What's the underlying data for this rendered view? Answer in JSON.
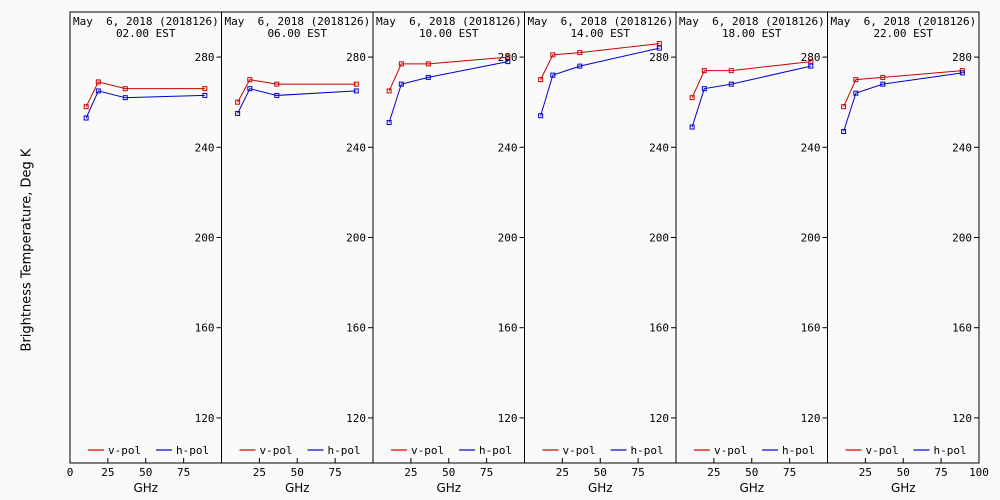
{
  "figure": {
    "ylabel": "Brightness Temperature, Deg K",
    "xlabel": "GHz",
    "colors": {
      "v_pol": "#cc0000",
      "h_pol": "#0000cc",
      "axes": "#000000",
      "background": "#fafafa"
    }
  },
  "chart_data": [
    {
      "type": "line",
      "title_line1": "May  6, 2018 (2018126)",
      "title_line2": "02.00 EST",
      "xlabel": "GHz",
      "ylabel": "Brightness Temperature, Deg K",
      "xlim": [
        0,
        100
      ],
      "ylim": [
        100,
        300
      ],
      "xticks": [
        0,
        25,
        50,
        75,
        100
      ],
      "xtick_labels": [
        "0",
        "25",
        "50",
        "75",
        "100"
      ],
      "yticks": [
        120,
        160,
        200,
        240,
        280
      ],
      "ytick_labels": [
        "120",
        "160",
        "200",
        "240",
        "280"
      ],
      "legend": [
        "v-pol",
        "h-pol"
      ],
      "legend_position": "bottom",
      "x": [
        10.65,
        18.7,
        36.5,
        89.0
      ],
      "series": [
        {
          "name": "v-pol",
          "color": "#cc0000",
          "values": [
            258,
            269,
            266,
            266
          ]
        },
        {
          "name": "h-pol",
          "color": "#0000cc",
          "values": [
            253,
            265,
            262,
            263
          ]
        }
      ]
    },
    {
      "type": "line",
      "title_line1": "May  6, 2018 (2018126)",
      "title_line2": "06.00 EST",
      "xlabel": "GHz",
      "ylabel": "Brightness Temperature, Deg K",
      "xlim": [
        0,
        100
      ],
      "ylim": [
        100,
        300
      ],
      "xticks": [
        0,
        25,
        50,
        75,
        100
      ],
      "xtick_labels": [
        "0",
        "25",
        "50",
        "75",
        "100"
      ],
      "yticks": [
        120,
        160,
        200,
        240,
        280
      ],
      "ytick_labels": [
        "120",
        "160",
        "200",
        "240",
        "280"
      ],
      "legend": [
        "v-pol",
        "h-pol"
      ],
      "legend_position": "bottom",
      "x": [
        10.65,
        18.7,
        36.5,
        89.0
      ],
      "series": [
        {
          "name": "v-pol",
          "color": "#cc0000",
          "values": [
            260,
            270,
            268,
            268
          ]
        },
        {
          "name": "h-pol",
          "color": "#0000cc",
          "values": [
            255,
            266,
            263,
            265
          ]
        }
      ]
    },
    {
      "type": "line",
      "title_line1": "May  6, 2018 (2018126)",
      "title_line2": "10.00 EST",
      "xlabel": "GHz",
      "ylabel": "Brightness Temperature, Deg K",
      "xlim": [
        0,
        100
      ],
      "ylim": [
        100,
        300
      ],
      "xticks": [
        0,
        25,
        50,
        75,
        100
      ],
      "xtick_labels": [
        "0",
        "25",
        "50",
        "75",
        "100"
      ],
      "yticks": [
        120,
        160,
        200,
        240,
        280
      ],
      "ytick_labels": [
        "120",
        "160",
        "200",
        "240",
        "280"
      ],
      "legend": [
        "v-pol",
        "h-pol"
      ],
      "legend_position": "bottom",
      "x": [
        10.65,
        18.7,
        36.5,
        89.0
      ],
      "series": [
        {
          "name": "v-pol",
          "color": "#cc0000",
          "values": [
            265,
            277,
            277,
            280
          ]
        },
        {
          "name": "h-pol",
          "color": "#0000cc",
          "values": [
            251,
            268,
            271,
            278
          ]
        }
      ]
    },
    {
      "type": "line",
      "title_line1": "May  6, 2018 (2018126)",
      "title_line2": "14.00 EST",
      "xlabel": "GHz",
      "ylabel": "Brightness Temperature, Deg K",
      "xlim": [
        0,
        100
      ],
      "ylim": [
        100,
        300
      ],
      "xticks": [
        0,
        25,
        50,
        75,
        100
      ],
      "xtick_labels": [
        "0",
        "25",
        "50",
        "75",
        "100"
      ],
      "yticks": [
        120,
        160,
        200,
        240,
        280
      ],
      "ytick_labels": [
        "120",
        "160",
        "200",
        "240",
        "280"
      ],
      "legend": [
        "v-pol",
        "h-pol"
      ],
      "legend_position": "bottom",
      "x": [
        10.65,
        18.7,
        36.5,
        89.0
      ],
      "series": [
        {
          "name": "v-pol",
          "color": "#cc0000",
          "values": [
            270,
            281,
            282,
            286
          ]
        },
        {
          "name": "h-pol",
          "color": "#0000cc",
          "values": [
            254,
            272,
            276,
            284
          ]
        }
      ]
    },
    {
      "type": "line",
      "title_line1": "May  6, 2018 (2018126)",
      "title_line2": "18.00 EST",
      "xlabel": "GHz",
      "ylabel": "Brightness Temperature, Deg K",
      "xlim": [
        0,
        100
      ],
      "ylim": [
        100,
        300
      ],
      "xticks": [
        0,
        25,
        50,
        75,
        100
      ],
      "xtick_labels": [
        "0",
        "25",
        "50",
        "75",
        "100"
      ],
      "yticks": [
        120,
        160,
        200,
        240,
        280
      ],
      "ytick_labels": [
        "120",
        "160",
        "200",
        "240",
        "280"
      ],
      "legend": [
        "v-pol",
        "h-pol"
      ],
      "legend_position": "bottom",
      "x": [
        10.65,
        18.7,
        36.5,
        89.0
      ],
      "series": [
        {
          "name": "v-pol",
          "color": "#cc0000",
          "values": [
            262,
            274,
            274,
            278
          ]
        },
        {
          "name": "h-pol",
          "color": "#0000cc",
          "values": [
            249,
            266,
            268,
            276
          ]
        }
      ]
    },
    {
      "type": "line",
      "title_line1": "May  6, 2018 (2018126)",
      "title_line2": "22.00 EST",
      "xlabel": "GHz",
      "ylabel": "Brightness Temperature, Deg K",
      "xlim": [
        0,
        100
      ],
      "ylim": [
        100,
        300
      ],
      "xticks": [
        0,
        25,
        50,
        75,
        100
      ],
      "xtick_labels": [
        "0",
        "25",
        "50",
        "75",
        "100"
      ],
      "yticks": [
        120,
        160,
        200,
        240,
        280
      ],
      "ytick_labels": [
        "120",
        "160",
        "200",
        "240",
        "280"
      ],
      "legend": [
        "v-pol",
        "h-pol"
      ],
      "legend_position": "bottom",
      "x": [
        10.65,
        18.7,
        36.5,
        89.0
      ],
      "series": [
        {
          "name": "v-pol",
          "color": "#cc0000",
          "values": [
            258,
            270,
            271,
            274
          ]
        },
        {
          "name": "h-pol",
          "color": "#0000cc",
          "values": [
            247,
            264,
            268,
            273
          ]
        }
      ]
    }
  ]
}
